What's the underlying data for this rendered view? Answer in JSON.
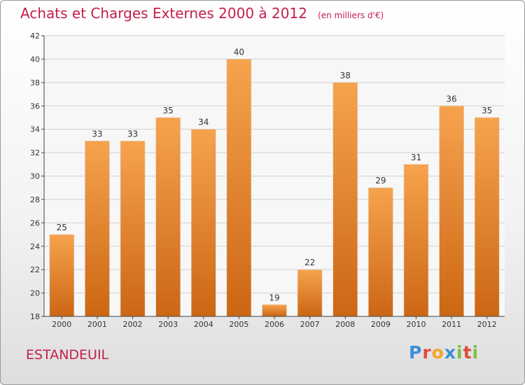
{
  "header": {
    "title": "Achats et Charges Externes 2000 à 2012",
    "unit": "(en milliers d'€)"
  },
  "footer": {
    "commune": "ESTANDEUIL",
    "brand_letters": [
      {
        "char": "P",
        "color": "#3a8fd8"
      },
      {
        "char": "r",
        "color": "#e14a3c"
      },
      {
        "char": "o",
        "color": "#f5a623"
      },
      {
        "char": "x",
        "color": "#3a8fd8"
      },
      {
        "char": "i",
        "color": "#7bc043"
      },
      {
        "char": "t",
        "color": "#e14a3c"
      },
      {
        "char": "i",
        "color": "#7bc043"
      }
    ]
  },
  "colors": {
    "accent": "#c4204a",
    "bar_top": "#f6a34e",
    "bar_bottom": "#cc6614",
    "axis": "#444444",
    "grid": "#d0d0d0"
  },
  "chart_data": {
    "type": "bar",
    "title": "Achats et Charges Externes 2000 à 2012",
    "subtitle": "(en milliers d'€)",
    "categories": [
      "2000",
      "2001",
      "2002",
      "2003",
      "2004",
      "2005",
      "2006",
      "2007",
      "2008",
      "2009",
      "2010",
      "2011",
      "2012"
    ],
    "values": [
      25,
      33,
      33,
      35,
      34,
      40,
      19,
      22,
      38,
      29,
      31,
      36,
      35
    ],
    "ylim": [
      18,
      42
    ],
    "yticks": [
      18,
      20,
      22,
      24,
      26,
      28,
      30,
      32,
      34,
      36,
      38,
      40,
      42
    ],
    "grid": true,
    "data_labels": true
  }
}
